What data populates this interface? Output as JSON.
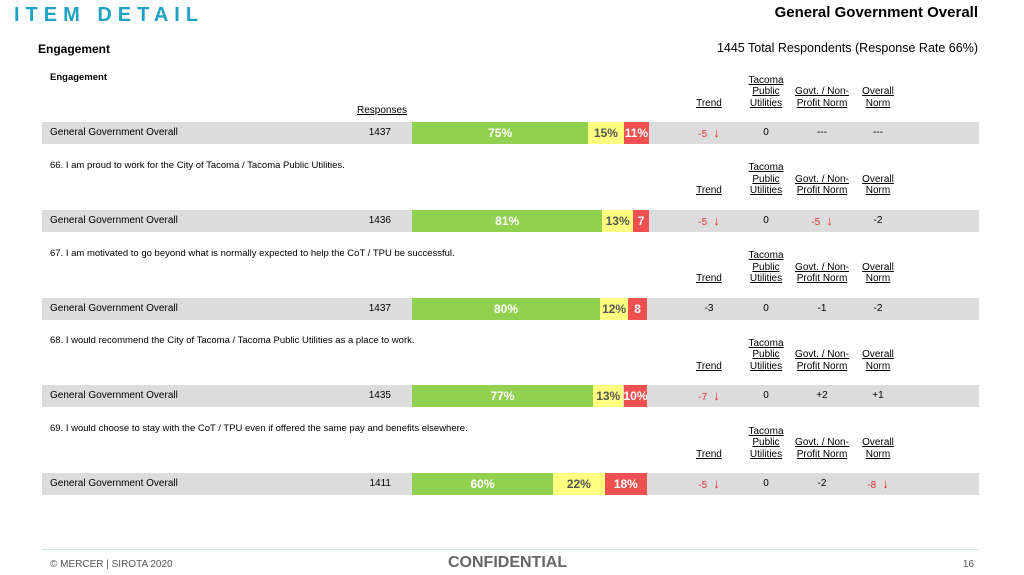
{
  "header": {
    "title": "ITEM DETAIL",
    "subject": "General Government Overall",
    "section": "Engagement",
    "respondents": "1445 Total Respondents (Response Rate  66%)"
  },
  "table": {
    "responses_header": "Responses",
    "columns": [
      "Trend",
      "Tacoma Public Utilities",
      "Govt. / Non-Profit Norm",
      "Overall Norm"
    ],
    "colors": [
      "#92d050",
      "#ffff80",
      "#f0504f"
    ],
    "items": [
      {
        "heading": "Engagement",
        "row": {
          "label": "General Government Overall",
          "responses": "1437",
          "values": [
            75,
            15,
            11
          ],
          "value_labels": [
            "75%",
            "15%",
            "11%"
          ],
          "cells": [
            {
              "text": "-5",
              "down": true
            },
            {
              "text": "0"
            },
            {
              "text": "---"
            },
            {
              "text": "---"
            }
          ]
        }
      },
      {
        "heading": "66. I am proud to work for the City of Tacoma / Tacoma Public Utilities.",
        "row": {
          "label": "General Government Overall",
          "responses": "1436",
          "values": [
            81,
            13,
            7
          ],
          "value_labels": [
            "81%",
            "13%",
            "7"
          ],
          "cells": [
            {
              "text": "-5",
              "down": true
            },
            {
              "text": "0"
            },
            {
              "text": "-5",
              "down": true
            },
            {
              "text": "-2"
            }
          ]
        }
      },
      {
        "heading": "67. I am motivated to go beyond what is normally expected to help the CoT / TPU be successful.",
        "row": {
          "label": "General Government Overall",
          "responses": "1437",
          "values": [
            80,
            12,
            8
          ],
          "value_labels": [
            "80%",
            "12%",
            "8"
          ],
          "cells": [
            {
              "text": "-3"
            },
            {
              "text": "0"
            },
            {
              "text": "-1"
            },
            {
              "text": "-2"
            }
          ]
        }
      },
      {
        "heading": "68. I would recommend the City of Tacoma / Tacoma Public Utilities as a place to work.",
        "row": {
          "label": "General Government Overall",
          "responses": "1435",
          "values": [
            77,
            13,
            10
          ],
          "value_labels": [
            "77%",
            "13%",
            "10%"
          ],
          "cells": [
            {
              "text": "-7",
              "down": true
            },
            {
              "text": "0"
            },
            {
              "text": "+2"
            },
            {
              "text": "+1"
            }
          ]
        }
      },
      {
        "heading": "69. I would choose to stay with the CoT / TPU even if offered the same pay and benefits elsewhere.",
        "row": {
          "label": "General Government Overall",
          "responses": "1411",
          "values": [
            60,
            22,
            18
          ],
          "value_labels": [
            "60%",
            "22%",
            "18%"
          ],
          "cells": [
            {
              "text": "-5",
              "down": true
            },
            {
              "text": "0"
            },
            {
              "text": "-2"
            },
            {
              "text": "-8",
              "down": true
            }
          ]
        }
      }
    ]
  },
  "footer": {
    "copyright": "© MERCER | SIROTA 2020",
    "confidential": "CONFIDENTIAL",
    "page": "16"
  }
}
